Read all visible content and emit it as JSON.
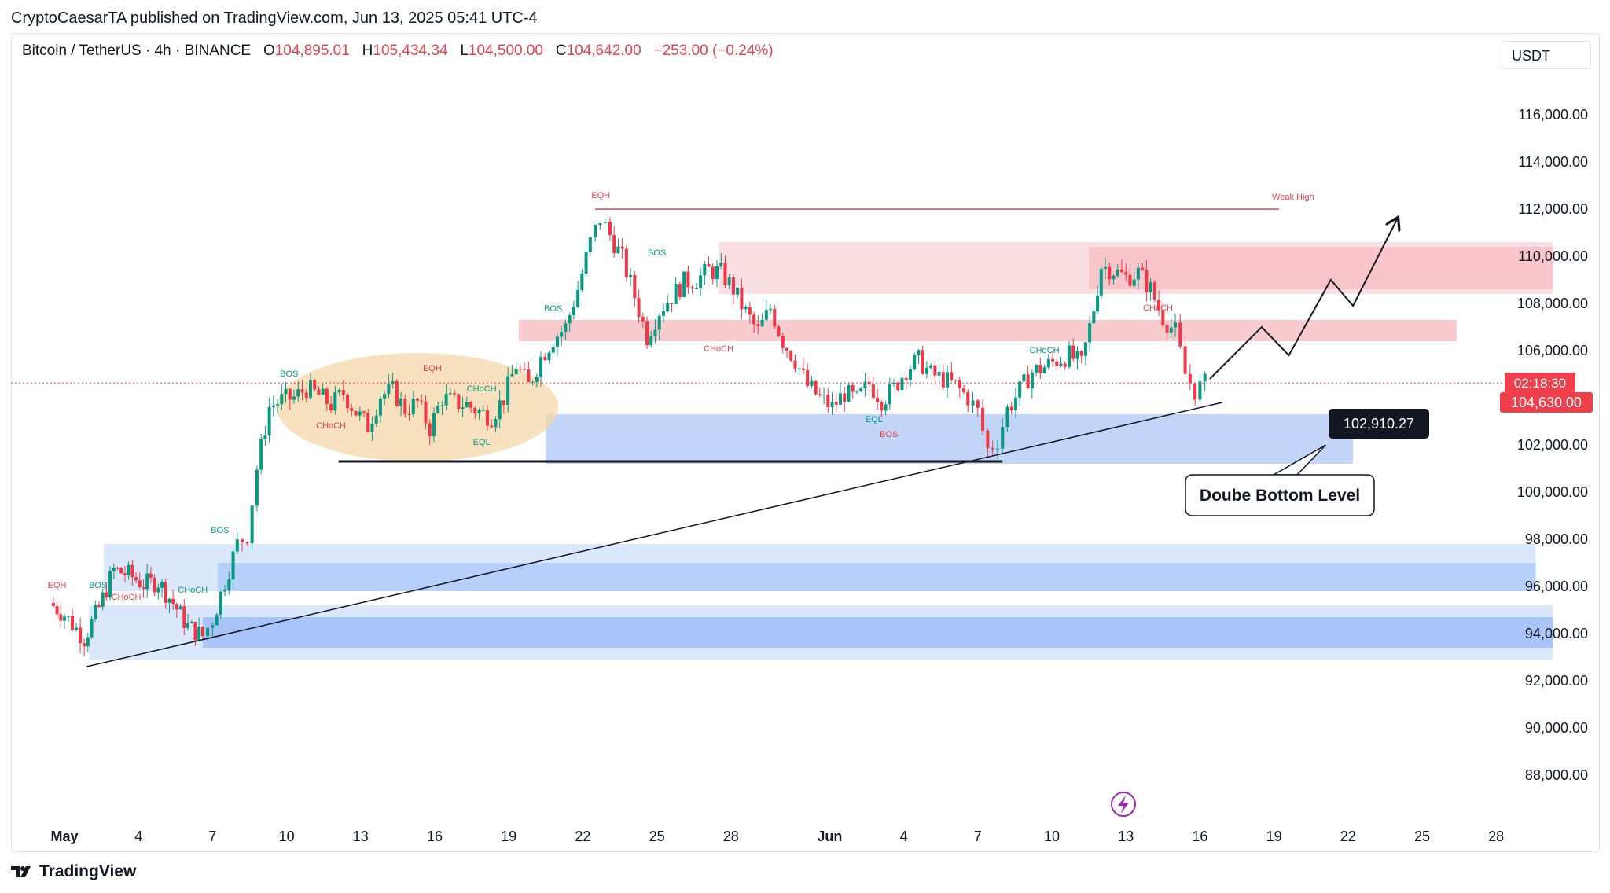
{
  "header": {
    "published_by": "CryptoCaesarTA published on TradingView.com, Jun 13, 2025 05:41 UTC-4"
  },
  "legend": {
    "symbol": "Bitcoin / TetherUS · 4h · BINANCE",
    "open_label": "O",
    "open": "104,895.01",
    "high_label": "H",
    "high": "105,434.34",
    "low_label": "L",
    "low": "104,500.00",
    "close_label": "C",
    "close": "104,642.00",
    "change": "−253.00 (−0.24%)"
  },
  "currency": "USDT",
  "footer": {
    "brand": "TradingView"
  },
  "colors": {
    "up": "#089981",
    "down": "#f23645",
    "supply": "#f7c5ca",
    "demand": "#b9cdf8",
    "orange": "#f6d7a8",
    "label_bg": "#ef3f4a"
  },
  "chart_data": {
    "type": "candlestick",
    "title": "Bitcoin / TetherUS · 4h · BINANCE",
    "ylim": [
      86500,
      118500
    ],
    "y_ticks": [
      "116,000.00",
      "114,000.00",
      "112,000.00",
      "110,000.00",
      "108,000.00",
      "106,000.00",
      "104,000.00",
      "102,000.00",
      "100,000.00",
      "98,000.00",
      "96,000.00",
      "94,000.00",
      "92,000.00",
      "90,000.00",
      "88,000.00"
    ],
    "y_tick_values": [
      116000,
      114000,
      112000,
      110000,
      108000,
      106000,
      104000,
      102000,
      100000,
      98000,
      96000,
      94000,
      92000,
      90000,
      88000
    ],
    "x_ticks": [
      "May",
      "4",
      "7",
      "10",
      "13",
      "16",
      "19",
      "22",
      "25",
      "28",
      "Jun",
      "4",
      "7",
      "10",
      "13",
      "16",
      "19",
      "22",
      "25",
      "28"
    ],
    "x_tick_days": [
      0,
      3,
      6,
      9,
      12,
      15,
      18,
      21,
      24,
      27,
      31,
      34,
      37,
      40,
      43,
      46,
      49,
      52,
      55,
      58
    ],
    "price_path": [
      [
        -0.6,
        95300
      ],
      [
        0,
        94800
      ],
      [
        0.8,
        93800
      ],
      [
        1.4,
        95100
      ],
      [
        2.0,
        96700
      ],
      [
        2.6,
        96500
      ],
      [
        3.2,
        96100
      ],
      [
        3.8,
        96200
      ],
      [
        4.4,
        95300
      ],
      [
        5.0,
        94300
      ],
      [
        5.6,
        93900
      ],
      [
        6.0,
        94600
      ],
      [
        6.5,
        96200
      ],
      [
        7.0,
        97800
      ],
      [
        7.4,
        98200
      ],
      [
        7.8,
        101000
      ],
      [
        8.3,
        103600
      ],
      [
        8.8,
        103900
      ],
      [
        9.3,
        104000
      ],
      [
        9.8,
        104400
      ],
      [
        10.3,
        104100
      ],
      [
        10.8,
        103700
      ],
      [
        11.3,
        104200
      ],
      [
        11.8,
        103400
      ],
      [
        12.3,
        102800
      ],
      [
        12.8,
        104100
      ],
      [
        13.3,
        104300
      ],
      [
        13.8,
        103500
      ],
      [
        14.3,
        103800
      ],
      [
        14.8,
        102700
      ],
      [
        15.3,
        104000
      ],
      [
        15.8,
        103800
      ],
      [
        16.3,
        103700
      ],
      [
        16.8,
        103400
      ],
      [
        17.3,
        103200
      ],
      [
        17.8,
        104000
      ],
      [
        18.3,
        105400
      ],
      [
        18.8,
        104500
      ],
      [
        19.3,
        105700
      ],
      [
        19.8,
        106500
      ],
      [
        20.3,
        107000
      ],
      [
        20.8,
        108600
      ],
      [
        21.3,
        110600
      ],
      [
        21.7,
        111600
      ],
      [
        22.1,
        110900
      ],
      [
        22.6,
        109900
      ],
      [
        23.1,
        108300
      ],
      [
        23.6,
        106600
      ],
      [
        24.1,
        107700
      ],
      [
        24.6,
        108300
      ],
      [
        25.1,
        108900
      ],
      [
        25.6,
        109000
      ],
      [
        26.1,
        109400
      ],
      [
        26.6,
        109300
      ],
      [
        27.1,
        108600
      ],
      [
        27.6,
        107600
      ],
      [
        28.1,
        106800
      ],
      [
        28.6,
        107800
      ],
      [
        29.1,
        106400
      ],
      [
        29.6,
        105600
      ],
      [
        30.1,
        104500
      ],
      [
        30.6,
        104000
      ],
      [
        31.1,
        103600
      ],
      [
        31.6,
        104200
      ],
      [
        32.1,
        103900
      ],
      [
        32.6,
        104600
      ],
      [
        33.1,
        103900
      ],
      [
        33.6,
        104400
      ],
      [
        34.1,
        105200
      ],
      [
        34.6,
        105600
      ],
      [
        35.1,
        105000
      ],
      [
        35.6,
        104800
      ],
      [
        36.1,
        104500
      ],
      [
        36.6,
        104000
      ],
      [
        37.0,
        103400
      ],
      [
        37.4,
        101800
      ],
      [
        37.8,
        102200
      ],
      [
        38.2,
        103500
      ],
      [
        38.7,
        104300
      ],
      [
        39.2,
        105100
      ],
      [
        39.7,
        105300
      ],
      [
        40.2,
        105600
      ],
      [
        40.7,
        105800
      ],
      [
        41.2,
        105400
      ],
      [
        41.7,
        107800
      ],
      [
        42.0,
        109600
      ],
      [
        42.5,
        109400
      ],
      [
        43.0,
        109100
      ],
      [
        43.5,
        109300
      ],
      [
        44.0,
        108600
      ],
      [
        44.5,
        107400
      ],
      [
        45.0,
        106800
      ],
      [
        45.4,
        105000
      ],
      [
        45.8,
        104300
      ],
      [
        46.2,
        104600
      ]
    ],
    "annotations": {
      "weak_high_label": "Weak High",
      "eqh_top_label": "EQH",
      "bos_labels": [
        "BOS",
        "BOS",
        "BOS",
        "BOS",
        "BOS"
      ],
      "choch_labels": [
        "CHoCH",
        "CHoCH",
        "CHoCH",
        "CHoCH",
        "CHoCH",
        "CHoCH"
      ],
      "eqh_labels": [
        "EQH",
        "EQH"
      ],
      "eql_labels": [
        "EQL",
        "EQL"
      ],
      "double_bottom": "Doube Bottom Level",
      "level_value": "102,910.27",
      "countdown": "02:18:30",
      "last_price": "104,630.00",
      "weak_high_price": 112000,
      "double_bottom_price": 101300,
      "supply_zones": [
        [
          108400,
          110600
        ],
        [
          106400,
          107300
        ]
      ],
      "demand_zones": [
        [
          101200,
          103300
        ],
        [
          95800,
          97800
        ],
        [
          92900,
          95200
        ]
      ]
    }
  }
}
